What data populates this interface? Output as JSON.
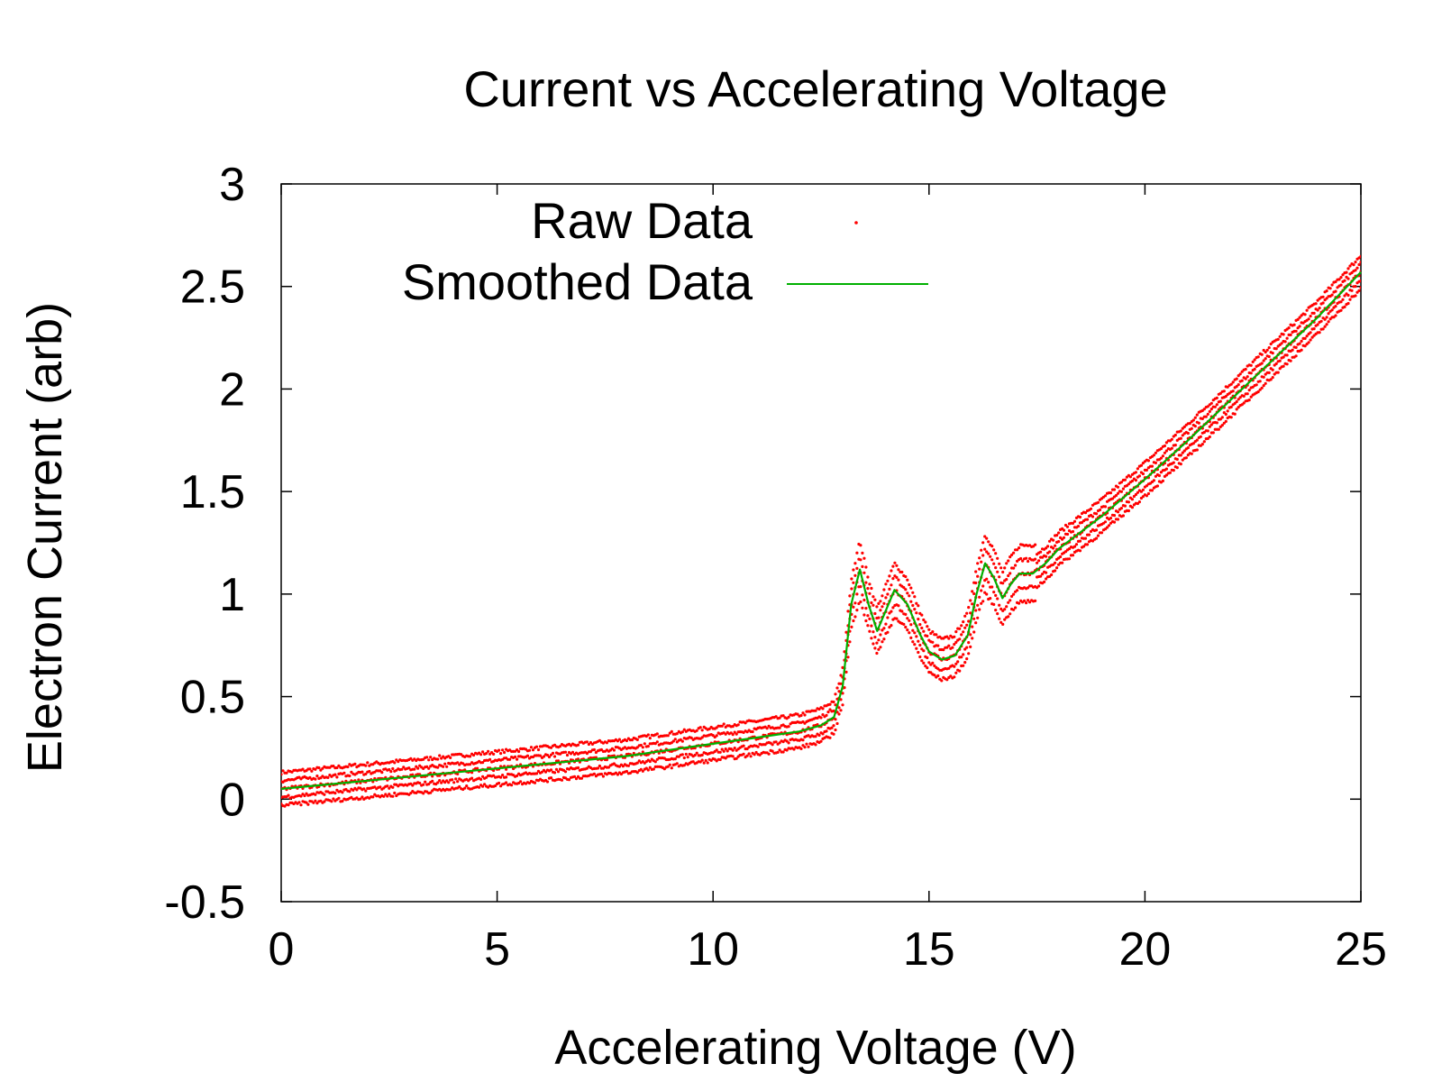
{
  "chart_data": {
    "type": "scatter",
    "title": "Current vs Accelerating Voltage",
    "xlabel": "Accelerating Voltage (V)",
    "ylabel": "Electron Current (arb)",
    "xlim": [
      0,
      25
    ],
    "ylim": [
      -0.5,
      3
    ],
    "x_ticks": [
      "0",
      "5",
      "10",
      "15",
      "20",
      "25"
    ],
    "y_ticks": [
      "-0.5",
      "0",
      "0.5",
      "1",
      "1.5",
      "2",
      "2.5",
      "3"
    ],
    "grid": false,
    "legend_position": "top-left",
    "series": [
      {
        "name": "Raw Data",
        "style": "dots",
        "color": "#ff0000",
        "runs_offsets": [
          0.08,
          0.04,
          0.0,
          -0.04,
          -0.08
        ],
        "x": [
          0,
          1,
          2,
          3,
          4,
          5,
          6,
          7,
          8,
          9,
          10,
          11,
          12,
          12.5,
          12.8,
          13.0,
          13.2,
          13.4,
          13.6,
          13.8,
          14.0,
          14.2,
          14.5,
          14.8,
          15.0,
          15.3,
          15.6,
          15.9,
          16.1,
          16.3,
          16.5,
          16.7,
          16.9,
          17.1,
          17.4,
          17.7,
          18.0,
          19,
          20,
          21,
          22,
          23,
          24,
          25
        ],
        "y": [
          0.05,
          0.07,
          0.09,
          0.11,
          0.13,
          0.15,
          0.17,
          0.19,
          0.21,
          0.24,
          0.27,
          0.3,
          0.33,
          0.36,
          0.4,
          0.55,
          0.95,
          1.12,
          0.95,
          0.82,
          0.92,
          1.02,
          0.95,
          0.8,
          0.72,
          0.68,
          0.7,
          0.8,
          1.0,
          1.15,
          1.08,
          0.98,
          1.05,
          1.1,
          1.1,
          1.15,
          1.22,
          1.38,
          1.56,
          1.75,
          1.95,
          2.15,
          2.35,
          2.57
        ]
      },
      {
        "name": "Smoothed Data",
        "style": "line",
        "color": "#00b000",
        "x": [
          0,
          1,
          2,
          3,
          4,
          5,
          6,
          7,
          8,
          9,
          10,
          11,
          12,
          12.5,
          12.8,
          13.0,
          13.2,
          13.4,
          13.6,
          13.8,
          14.0,
          14.2,
          14.5,
          14.8,
          15.0,
          15.3,
          15.6,
          15.9,
          16.1,
          16.3,
          16.5,
          16.7,
          16.9,
          17.1,
          17.4,
          17.7,
          18.0,
          19,
          20,
          21,
          22,
          23,
          24,
          25
        ],
        "y": [
          0.05,
          0.07,
          0.09,
          0.11,
          0.13,
          0.15,
          0.17,
          0.19,
          0.21,
          0.24,
          0.27,
          0.3,
          0.33,
          0.36,
          0.4,
          0.55,
          0.95,
          1.12,
          0.95,
          0.82,
          0.92,
          1.02,
          0.95,
          0.8,
          0.72,
          0.68,
          0.7,
          0.8,
          1.0,
          1.15,
          1.08,
          0.98,
          1.05,
          1.1,
          1.1,
          1.15,
          1.22,
          1.38,
          1.56,
          1.75,
          1.95,
          2.15,
          2.35,
          2.57
        ]
      }
    ]
  }
}
